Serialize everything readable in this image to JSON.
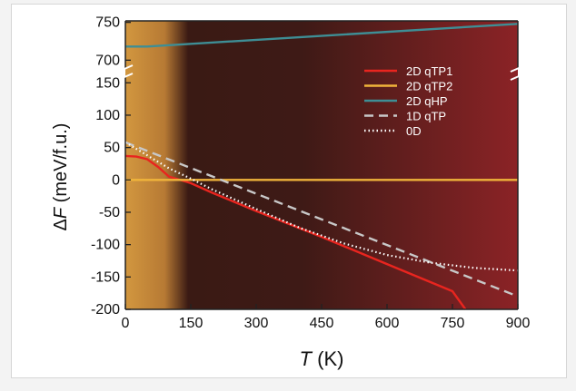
{
  "chart_data": {
    "type": "line",
    "xlabel": {
      "italic": "T",
      "rest": " (K)"
    },
    "ylabel": {
      "delta": "Δ",
      "italic": "F",
      "rest": " (meV/f.u.)"
    },
    "xlim": [
      0,
      900
    ],
    "ylim_lower": [
      -200,
      160
    ],
    "ylim_upper": [
      680,
      760
    ],
    "axis_break": true,
    "xticks": [
      "0",
      "150",
      "300",
      "450",
      "600",
      "750",
      "900"
    ],
    "yticks_lower": [
      "-200",
      "-150",
      "-100",
      "-50",
      "0",
      "50",
      "100",
      "150"
    ],
    "yticks_upper": [
      "700",
      "750"
    ],
    "legend_position": "top-right",
    "series": [
      {
        "name": "2D qTP1",
        "color": "#e8251f",
        "dash": "solid",
        "x": [
          0,
          25,
          50,
          75,
          100,
          150,
          200,
          300,
          450,
          600,
          750,
          780
        ],
        "y": [
          37,
          36,
          32,
          20,
          5,
          -5,
          -20,
          -48,
          -88,
          -130,
          -172,
          -200
        ]
      },
      {
        "name": "2D qTP2",
        "color": "#f0b43b",
        "dash": "solid",
        "x": [
          0,
          900
        ],
        "y": [
          0,
          0
        ]
      },
      {
        "name": "2D qHP",
        "color": "#3e8e95",
        "dash": "solid",
        "x": [
          0,
          50,
          900
        ],
        "y": [
          718,
          718,
          748
        ]
      },
      {
        "name": "1D qTP",
        "color": "#c8c8c8",
        "dash": "dashed",
        "x": [
          0,
          900
        ],
        "y": [
          58,
          -180
        ]
      },
      {
        "name": "0D",
        "color": "#ffffff",
        "dash": "dotted",
        "x": [
          0,
          50,
          100,
          150,
          200,
          300,
          400,
          500,
          600,
          700,
          800,
          900
        ],
        "y": [
          58,
          38,
          18,
          2,
          -15,
          -45,
          -74,
          -98,
          -116,
          -128,
          -136,
          -140
        ]
      }
    ]
  }
}
